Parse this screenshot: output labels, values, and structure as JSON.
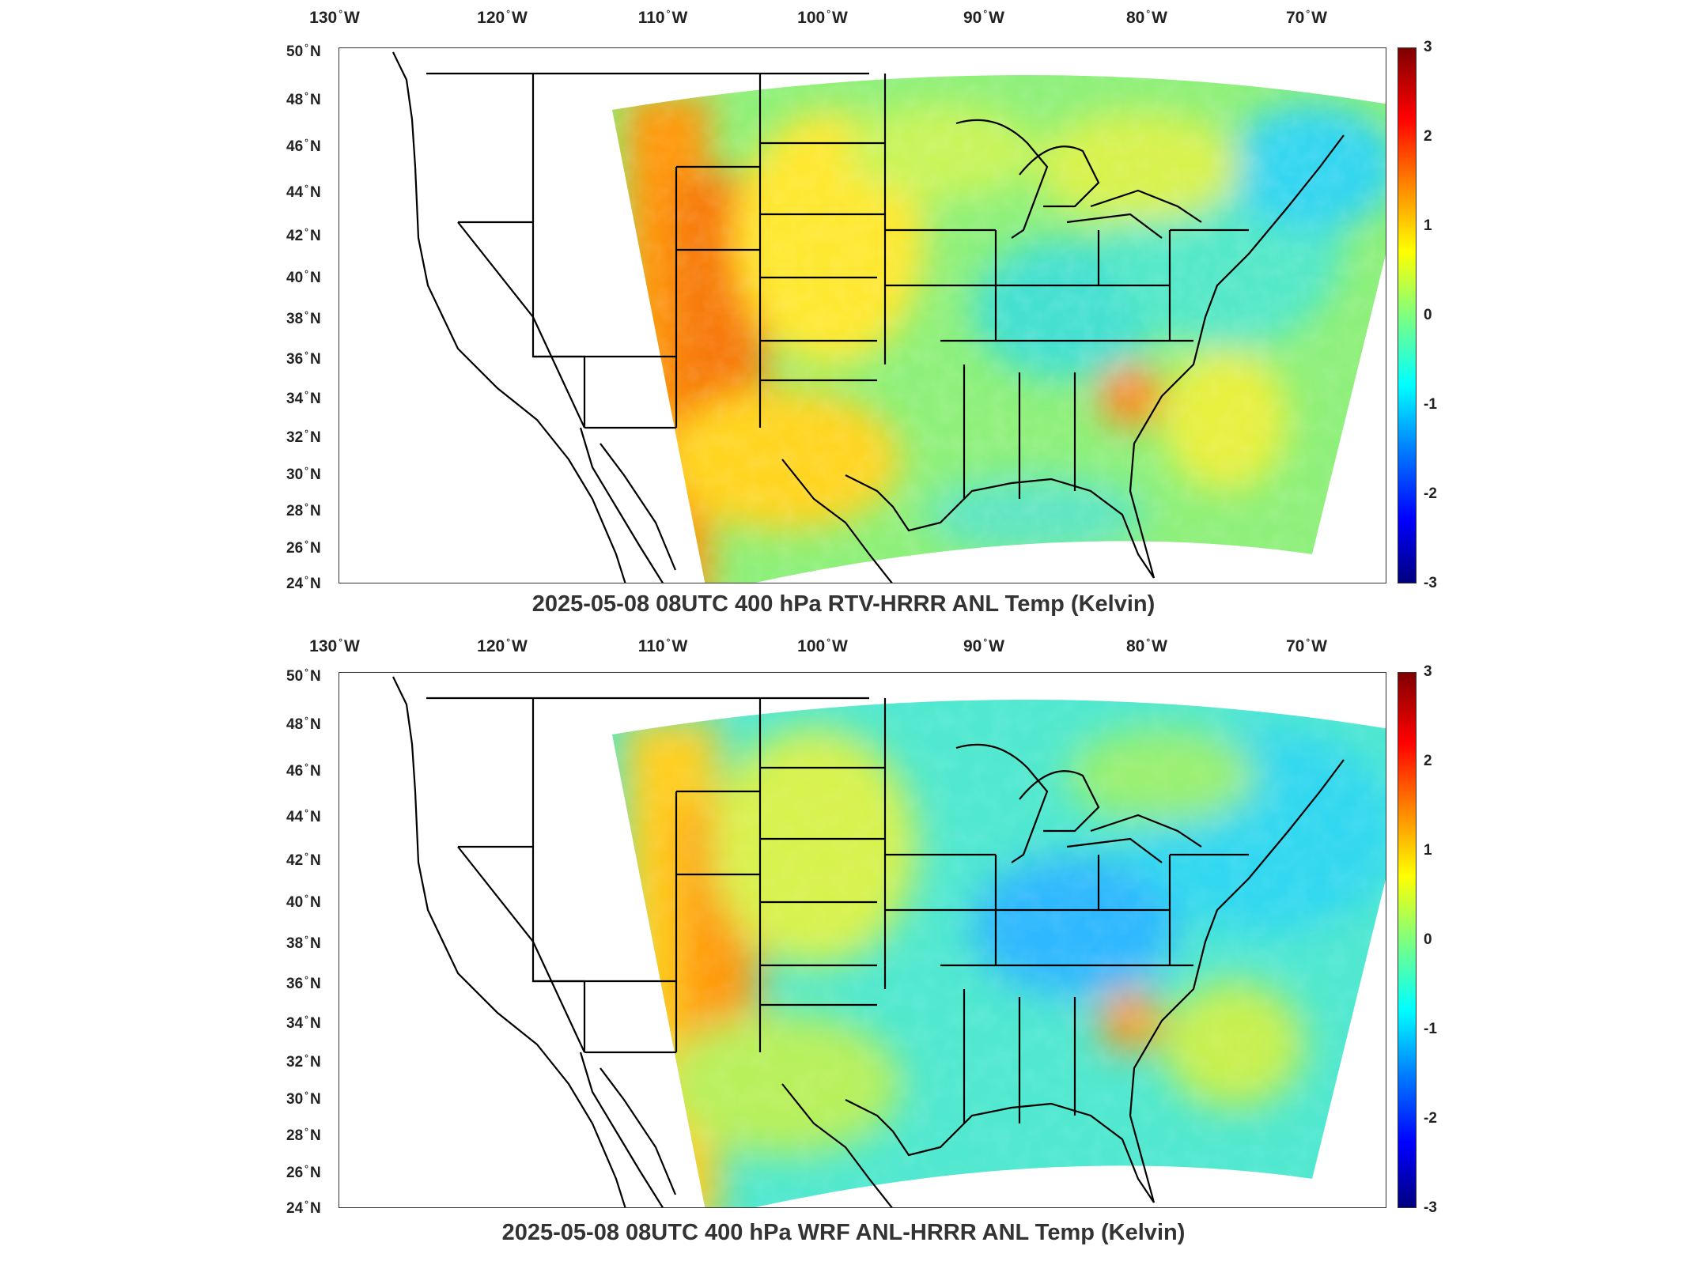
{
  "figure": {
    "lon_ticks": [
      "130",
      "120",
      "110",
      "100",
      "90",
      "80",
      "70"
    ],
    "lon_suffix": "W",
    "lat_ticks": [
      "50",
      "48",
      "46",
      "44",
      "42",
      "40",
      "38",
      "36",
      "34",
      "32",
      "30",
      "28",
      "26",
      "24"
    ],
    "lat_suffix": "N",
    "colorbar_ticks": [
      "3",
      "2",
      "1",
      "0",
      "-1",
      "-2",
      "-3"
    ],
    "colormap": "jet",
    "colorbar_range": [
      -3,
      3
    ]
  },
  "panels": [
    {
      "title": "2025-05-08 08UTC 400 hPa RTV-HRRR ANL Temp (Kelvin)"
    },
    {
      "title": "2025-05-08 08UTC 400 hPa WRF ANL-HRRR ANL Temp (Kelvin)"
    }
  ]
}
